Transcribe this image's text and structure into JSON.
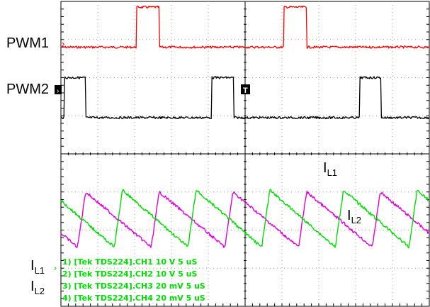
{
  "chart_data": {
    "type": "line",
    "grid": true,
    "time_per_division": "5 uS",
    "x_divisions": 10,
    "y_divisions": 8,
    "series": [
      {
        "name": "PWM1",
        "color": "#ff0000",
        "kind": "pulse",
        "center_div": 1.2,
        "high_level_div": 1.05,
        "period_div": 4.0,
        "pulse_width_div": 0.62,
        "first_rise_div": 2.05
      },
      {
        "name": "PWM2",
        "color": "#000000",
        "kind": "pulse",
        "center_div": 3.05,
        "high_level_div": 1.05,
        "period_div": 4.0,
        "pulse_width_div": 0.58,
        "first_rise_div": 0.1
      },
      {
        "name": "I_L1",
        "color": "#e000e0",
        "kind": "sawtooth",
        "ramp": "down",
        "period_div": 2.0,
        "first_jump_div": 0.45,
        "high_div": 5.0,
        "low_div": 6.45,
        "jump_width_div": 0.22
      },
      {
        "name": "I_L2",
        "color": "#00dd00",
        "kind": "sawtooth",
        "ramp": "up",
        "period_div": 2.0,
        "first_jump_div": 1.45,
        "high_div": 4.95,
        "low_div": 6.45,
        "jump_width_div": 0.22
      }
    ]
  },
  "labels": {
    "pwm1": "PWM1",
    "pwm2": "PWM2",
    "il1_main": "I",
    "il1_sub": "L1",
    "il2_main": "I",
    "il2_sub": "L2",
    "trigger": "T"
  },
  "channel_info": [
    "1) [Tek TDS224].CH1  10  V   5 uS",
    "2) [Tek TDS224].CH2  10  V   5 uS",
    "3) [Tek TDS224].CH3  20 mV   5 uS",
    "4) [Tek TDS224].CH4  20 mV   5 uS"
  ]
}
